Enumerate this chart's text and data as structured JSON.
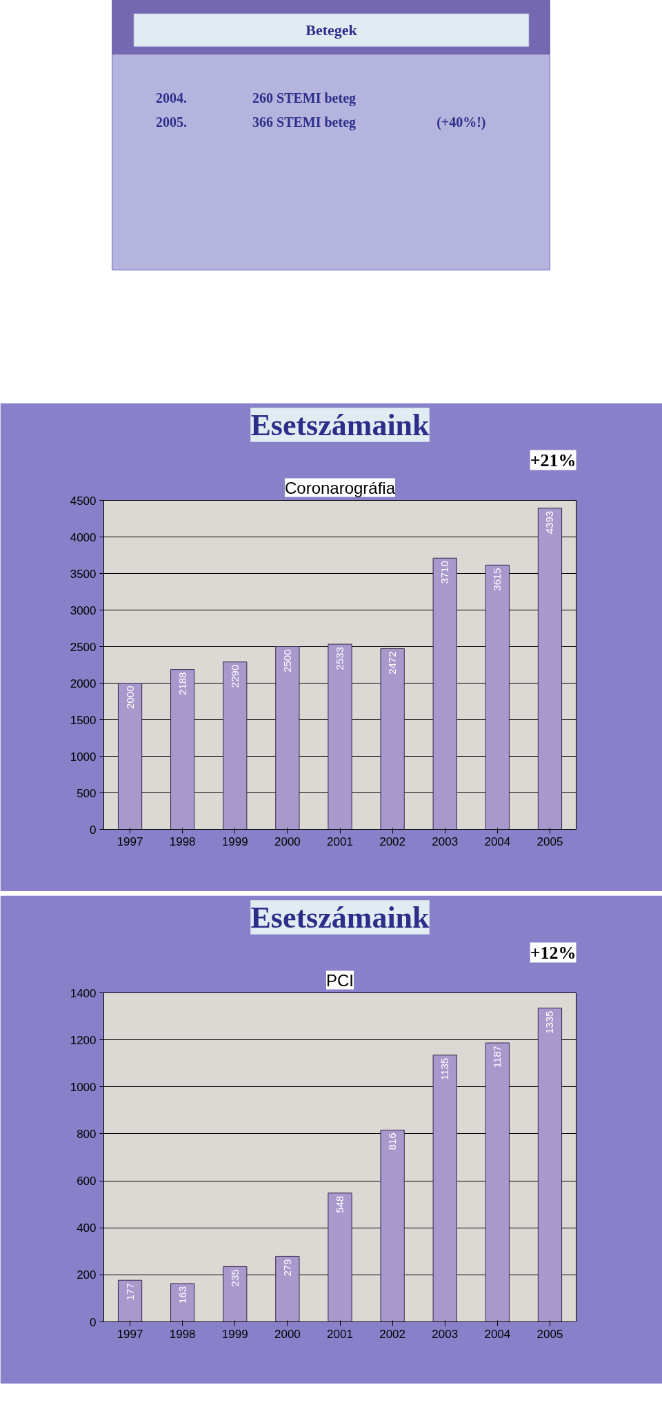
{
  "chart_data": [
    {
      "type": "other",
      "title": "Betegek",
      "annotations": [
        "2004.",
        "260 STEMI beteg",
        "2005.",
        "366 STEMI beteg",
        "(+40%!)"
      ]
    },
    {
      "type": "bar",
      "title": "Esetszámaink",
      "subtitle": "Coronarográfia",
      "annotations": [
        "+21%"
      ],
      "categories": [
        "1997",
        "1998",
        "1999",
        "2000",
        "2001",
        "2002",
        "2003",
        "2004",
        "2005"
      ],
      "values": [
        2000,
        2188,
        2290,
        2500,
        2533,
        2472,
        3710,
        3615,
        4393
      ],
      "color": "#a898cc",
      "ylim": [
        0,
        4500
      ],
      "yticks": [
        0,
        500,
        1000,
        1500,
        2000,
        2500,
        3000,
        3500,
        4000,
        4500
      ],
      "grid": "y",
      "data_labels": true
    },
    {
      "type": "bar",
      "title": "Esetszámaink",
      "subtitle": "PCI",
      "annotations": [
        "+12%"
      ],
      "categories": [
        "1997",
        "1998",
        "1999",
        "2000",
        "2001",
        "2002",
        "2003",
        "2004",
        "2005"
      ],
      "values": [
        177,
        163,
        235,
        279,
        548,
        816,
        1135,
        1187,
        1335
      ],
      "color": "#a898cc",
      "ylim": [
        0,
        1400
      ],
      "yticks": [
        0,
        200,
        400,
        600,
        800,
        1000,
        1200,
        1400
      ],
      "grid": "y",
      "data_labels": true
    }
  ]
}
